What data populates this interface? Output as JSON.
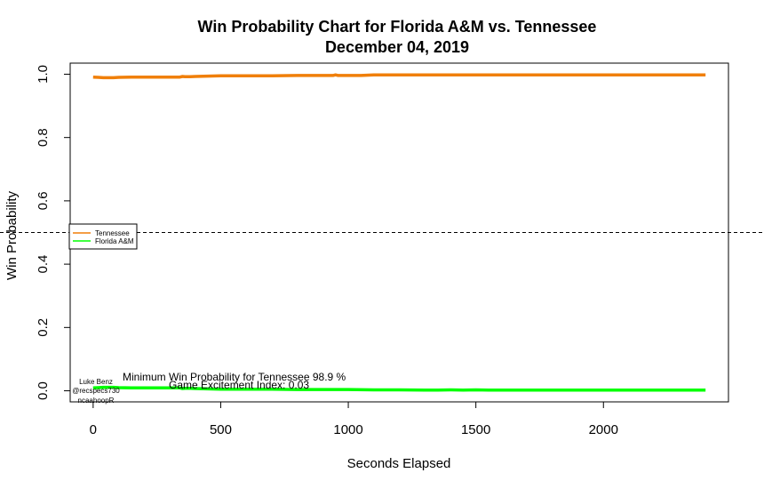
{
  "chart_data": {
    "type": "line",
    "title": "Win Probability Chart for Florida A&M vs. Tennessee",
    "subtitle": "December 04, 2019",
    "xlabel": "Seconds Elapsed",
    "ylabel": "Win Probability",
    "xlim": [
      -90,
      2490
    ],
    "ylim": [
      -0.035,
      1.035
    ],
    "x_ticks": [
      0,
      500,
      1000,
      1500,
      2000
    ],
    "y_ticks": [
      0.0,
      0.2,
      0.4,
      0.6,
      0.8,
      1.0
    ],
    "x_tick_labels": [
      "0",
      "500",
      "1000",
      "1500",
      "2000"
    ],
    "y_tick_labels": [
      "0.0",
      "0.2",
      "0.4",
      "0.6",
      "0.8",
      "1.0"
    ],
    "reference_line": {
      "y": 0.5,
      "style": "dashed"
    },
    "legend": {
      "placement": "left-middle",
      "entries": [
        "Tennessee",
        "Florida A&M"
      ]
    },
    "series": [
      {
        "name": "Tennessee",
        "color": "#F07F09",
        "x": [
          0,
          20,
          40,
          60,
          80,
          100,
          150,
          200,
          250,
          300,
          340,
          350,
          360,
          380,
          400,
          450,
          500,
          600,
          700,
          800,
          900,
          940,
          950,
          960,
          1000,
          1050,
          1080,
          1100,
          1200,
          1300,
          1400,
          1500,
          1600,
          1800,
          2000,
          2200,
          2400
        ],
        "y": [
          0.991,
          0.99,
          0.989,
          0.989,
          0.989,
          0.99,
          0.991,
          0.991,
          0.991,
          0.991,
          0.991,
          0.993,
          0.992,
          0.992,
          0.993,
          0.994,
          0.995,
          0.995,
          0.995,
          0.996,
          0.996,
          0.996,
          0.998,
          0.996,
          0.996,
          0.996,
          0.997,
          0.998,
          0.998,
          0.998,
          0.998,
          0.998,
          0.998,
          0.998,
          0.998,
          0.998,
          0.998
        ]
      },
      {
        "name": "Florida A&M",
        "color": "#00FF00",
        "x": [
          0,
          20,
          40,
          60,
          80,
          100,
          150,
          200,
          250,
          300,
          340,
          350,
          360,
          380,
          400,
          450,
          500,
          600,
          700,
          800,
          900,
          1000,
          1100,
          1200,
          1300,
          1350,
          1400,
          1450,
          1500,
          1550,
          1600,
          1800,
          2000,
          2200,
          2400
        ],
        "y": [
          0.009,
          0.01,
          0.011,
          0.011,
          0.011,
          0.01,
          0.009,
          0.009,
          0.009,
          0.009,
          0.009,
          0.007,
          0.008,
          0.008,
          0.007,
          0.006,
          0.005,
          0.005,
          0.005,
          0.004,
          0.004,
          0.004,
          0.003,
          0.003,
          0.002,
          0.002,
          0.003,
          0.002,
          0.003,
          0.002,
          0.002,
          0.002,
          0.002,
          0.002,
          0.002
        ]
      }
    ],
    "annotations": [
      "Minimum Win Probability for Tennessee 98.9 %",
      "Game Excitement Index: 0.03"
    ],
    "credits": [
      "Luke Benz",
      "@recspecs730",
      "ncaahoopR"
    ]
  }
}
